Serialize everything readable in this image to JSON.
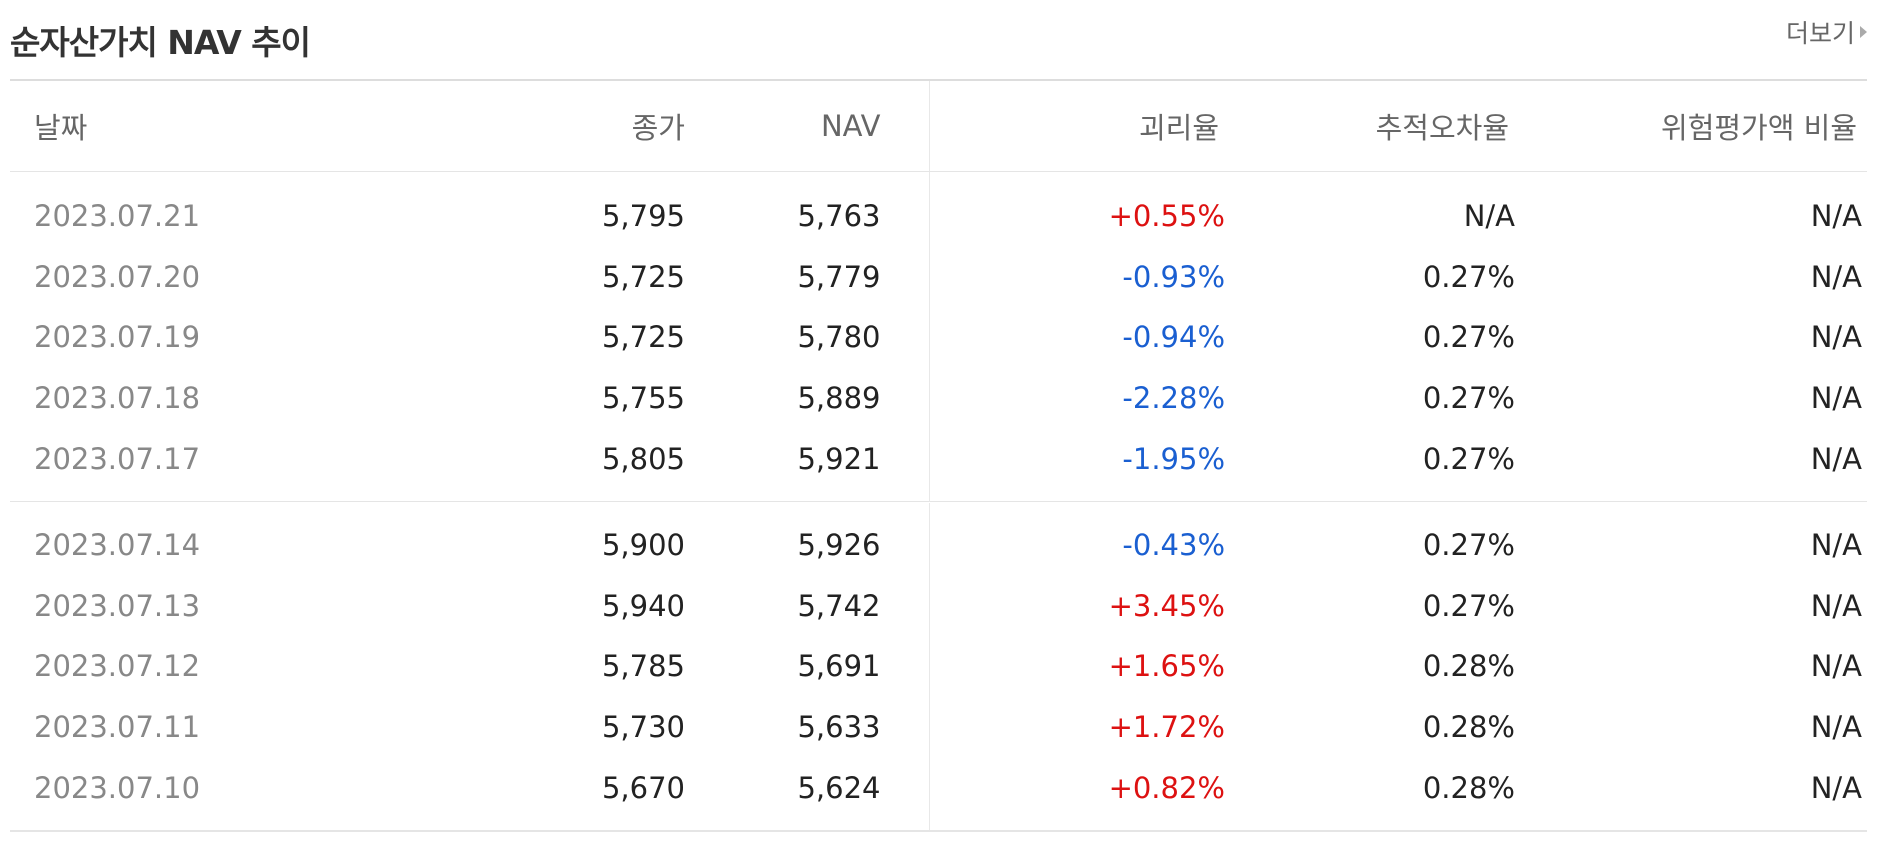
{
  "header": {
    "title": "순자산가치 NAV 추이",
    "more_label": "더보기"
  },
  "table": {
    "columns": [
      "날짜",
      "종가",
      "NAV",
      "괴리율",
      "추적오차율",
      "위험평가액 비율"
    ],
    "groups": [
      [
        {
          "date": "2023.07.21",
          "close": "5,795",
          "nav": "5,763",
          "gap": "+0.55%",
          "gap_dir": "up",
          "tracking": "N/A",
          "risk": "N/A"
        },
        {
          "date": "2023.07.20",
          "close": "5,725",
          "nav": "5,779",
          "gap": "-0.93%",
          "gap_dir": "down",
          "tracking": "0.27%",
          "risk": "N/A"
        },
        {
          "date": "2023.07.19",
          "close": "5,725",
          "nav": "5,780",
          "gap": "-0.94%",
          "gap_dir": "down",
          "tracking": "0.27%",
          "risk": "N/A"
        },
        {
          "date": "2023.07.18",
          "close": "5,755",
          "nav": "5,889",
          "gap": "-2.28%",
          "gap_dir": "down",
          "tracking": "0.27%",
          "risk": "N/A"
        },
        {
          "date": "2023.07.17",
          "close": "5,805",
          "nav": "5,921",
          "gap": "-1.95%",
          "gap_dir": "down",
          "tracking": "0.27%",
          "risk": "N/A"
        }
      ],
      [
        {
          "date": "2023.07.14",
          "close": "5,900",
          "nav": "5,926",
          "gap": "-0.43%",
          "gap_dir": "down",
          "tracking": "0.27%",
          "risk": "N/A"
        },
        {
          "date": "2023.07.13",
          "close": "5,940",
          "nav": "5,742",
          "gap": "+3.45%",
          "gap_dir": "up",
          "tracking": "0.27%",
          "risk": "N/A"
        },
        {
          "date": "2023.07.12",
          "close": "5,785",
          "nav": "5,691",
          "gap": "+1.65%",
          "gap_dir": "up",
          "tracking": "0.28%",
          "risk": "N/A"
        },
        {
          "date": "2023.07.11",
          "close": "5,730",
          "nav": "5,633",
          "gap": "+1.72%",
          "gap_dir": "up",
          "tracking": "0.28%",
          "risk": "N/A"
        },
        {
          "date": "2023.07.10",
          "close": "5,670",
          "nav": "5,624",
          "gap": "+0.82%",
          "gap_dir": "up",
          "tracking": "0.28%",
          "risk": "N/A"
        }
      ]
    ]
  },
  "colors": {
    "up": "#dd1111",
    "down": "#1a5fd1",
    "date_text": "#888888",
    "header_text": "#666666"
  }
}
